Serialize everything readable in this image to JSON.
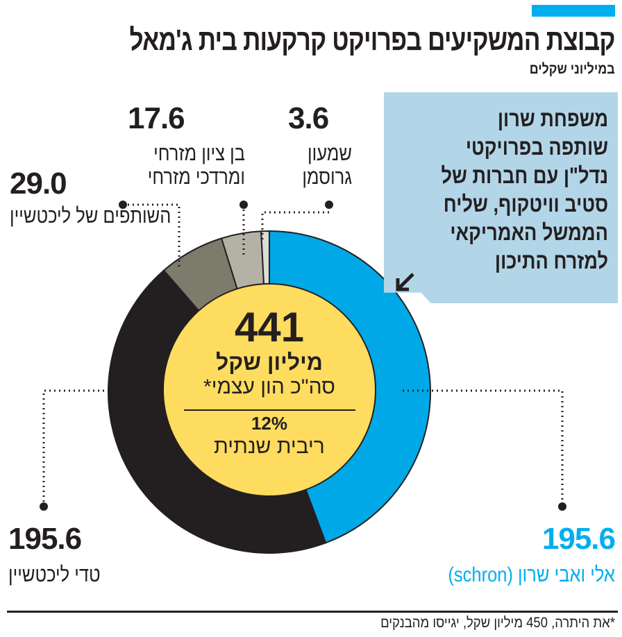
{
  "header": {
    "title": "קבוצת המשקיעים בפרויקט קרקעות בית ג'מאל",
    "subtitle": "במיליוני שקלים"
  },
  "note": {
    "text": "משפחת שרון\nשותפה בפרויקטי\nנדל\"ן עם חברות של\nסטיב וויטקוף, שליח\nהממשל האמריקאי\nלמזרח התיכון",
    "icon": "arrow-down-left-icon"
  },
  "center": {
    "total": "441",
    "unit": "מיליון שקל",
    "total_label": "סה\"כ הון עצמי*",
    "rate": "12%",
    "rate_label": "ריבית שנתית"
  },
  "footnote": "*את היתרה, 450 מיליון שקל, יגייסו מהבנקים",
  "chart_data": {
    "type": "pie",
    "donut": true,
    "title": "קבוצת המשקיעים בפרויקט קרקעות בית ג'מאל",
    "subtitle": "במיליוני שקלים",
    "total": 441,
    "slices": [
      {
        "label": "אלי ואבי שרון (schron)",
        "value": 195.6,
        "display": "195.6",
        "color": "#00a8e8"
      },
      {
        "label": "טדי ליכטשיין",
        "value": 195.6,
        "display": "195.6",
        "color": "#231f20"
      },
      {
        "label": "השותפים של ליכטשיין",
        "value": 29.0,
        "display": "29.0",
        "color": "#7d7b6c"
      },
      {
        "label": "בן ציון מזרחי ומרדכי מזרחי",
        "value": 17.6,
        "display": "17.6",
        "color": "#b4b2a5"
      },
      {
        "label": "שמעון גרוסמן",
        "value": 3.6,
        "display": "3.6",
        "color": "#dcdcd6"
      }
    ],
    "center_color": "#fddc5f",
    "accent": "#00aeef"
  }
}
